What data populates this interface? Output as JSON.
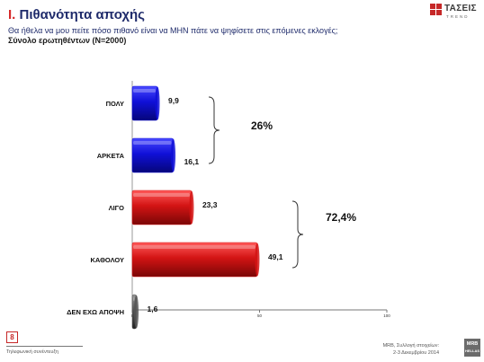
{
  "header": {
    "title_num": "I.",
    "title_text": "Πιθανότητα αποχής",
    "question": "Θα ήθελα να μου πείτε πόσο πιθανό είναι να ΜΗΝ πάτε να ψηφίσετε στις επόμενες εκλογές;",
    "base": "Σύνολο ερωτηθέντων (N=2000)"
  },
  "logo": {
    "word": "ΤΑΣΕΙΣ",
    "small": "TREND"
  },
  "colors": {
    "blue": "#1010d8",
    "red": "#d31414",
    "gray": "#555555"
  },
  "chart_data": {
    "type": "bar",
    "orientation": "horizontal",
    "categories": [
      "ΠΟΛΥ",
      "ΑΡΚΕΤΑ",
      "ΛΙΓΟ",
      "ΚΑΘΟΛΟΥ",
      "ΔΕΝ ΕΧΩ ΑΠΟΨΗ"
    ],
    "values": [
      9.9,
      16.1,
      23.3,
      49.1,
      1.6
    ],
    "value_labels": [
      "9,9",
      "16,1",
      "23,3",
      "49,1",
      "1,6"
    ],
    "bar_colors": [
      "blue",
      "blue",
      "red",
      "red",
      "gray"
    ],
    "xlim": [
      0,
      100
    ],
    "ticks": [
      0,
      50,
      100
    ],
    "tick_labels": [
      "0",
      "50",
      "100"
    ],
    "groups": [
      {
        "label": "26%",
        "from": 0,
        "to": 1
      },
      {
        "label": "72,4%",
        "from": 2,
        "to": 3
      }
    ]
  },
  "footer": {
    "page": "8",
    "left": "Τηλεφωνική συνέντευξη",
    "right_line1": "MRB, Συλλογή στοιχείων:",
    "right_line2": "2-3 Δεκεμβρίου 2014",
    "brand": "MRB",
    "brand_sub": "HELLAS"
  }
}
